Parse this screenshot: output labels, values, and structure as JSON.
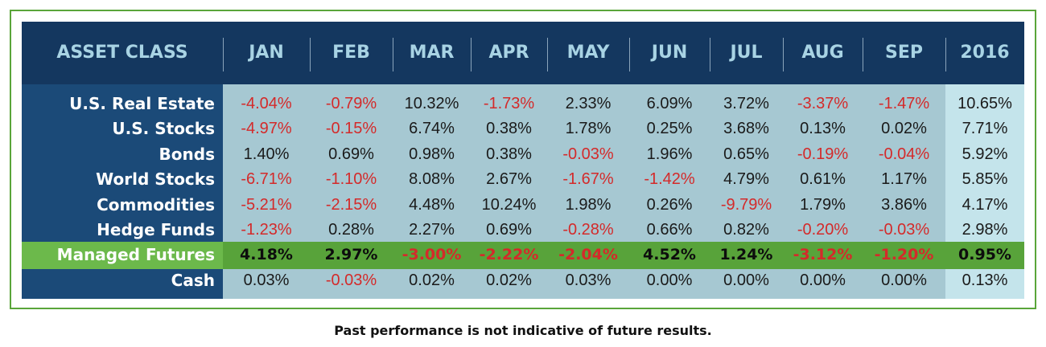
{
  "table": {
    "columns": [
      "ASSET CLASS",
      "JAN",
      "FEB",
      "MAR",
      "APR",
      "MAY",
      "JUN",
      "JUL",
      "AUG",
      "SEP",
      "2016"
    ],
    "highlighted_row": 6,
    "rows": [
      {
        "label": "U.S. Real Estate",
        "values": [
          "-4.04%",
          "-0.79%",
          "10.32%",
          "-1.73%",
          "2.33%",
          "6.09%",
          "3.72%",
          "-3.37%",
          "-1.47%",
          "10.65%"
        ]
      },
      {
        "label": "U.S. Stocks",
        "values": [
          "-4.97%",
          "-0.15%",
          "6.74%",
          "0.38%",
          "1.78%",
          "0.25%",
          "3.68%",
          "0.13%",
          "0.02%",
          "7.71%"
        ]
      },
      {
        "label": "Bonds",
        "values": [
          "1.40%",
          "0.69%",
          "0.98%",
          "0.38%",
          "-0.03%",
          "1.96%",
          "0.65%",
          "-0.19%",
          "-0.04%",
          "5.92%"
        ]
      },
      {
        "label": "World Stocks",
        "values": [
          "-6.71%",
          "-1.10%",
          "8.08%",
          "2.67%",
          "-1.67%",
          "-1.42%",
          "4.79%",
          "0.61%",
          "1.17%",
          "5.85%"
        ]
      },
      {
        "label": "Commodities",
        "values": [
          "-5.21%",
          "-2.15%",
          "4.48%",
          "10.24%",
          "1.98%",
          "0.26%",
          "-9.79%",
          "1.79%",
          "3.86%",
          "4.17%"
        ]
      },
      {
        "label": "Hedge Funds",
        "values": [
          "-1.23%",
          "0.28%",
          "2.27%",
          "0.69%",
          "-0.28%",
          "0.66%",
          "0.82%",
          "-0.20%",
          "-0.03%",
          "2.98%"
        ]
      },
      {
        "label": "Managed Futures",
        "values": [
          "4.18%",
          "2.97%",
          "-3.00%",
          "-2.22%",
          "-2.04%",
          "4.52%",
          "1.24%",
          "-3.12%",
          "-1.20%",
          "0.95%"
        ]
      },
      {
        "label": "Cash",
        "values": [
          "0.03%",
          "-0.03%",
          "0.02%",
          "0.02%",
          "0.03%",
          "0.00%",
          "0.00%",
          "0.00%",
          "0.00%",
          "0.13%"
        ]
      }
    ]
  },
  "footer": "Past performance is not indicative of future results."
}
